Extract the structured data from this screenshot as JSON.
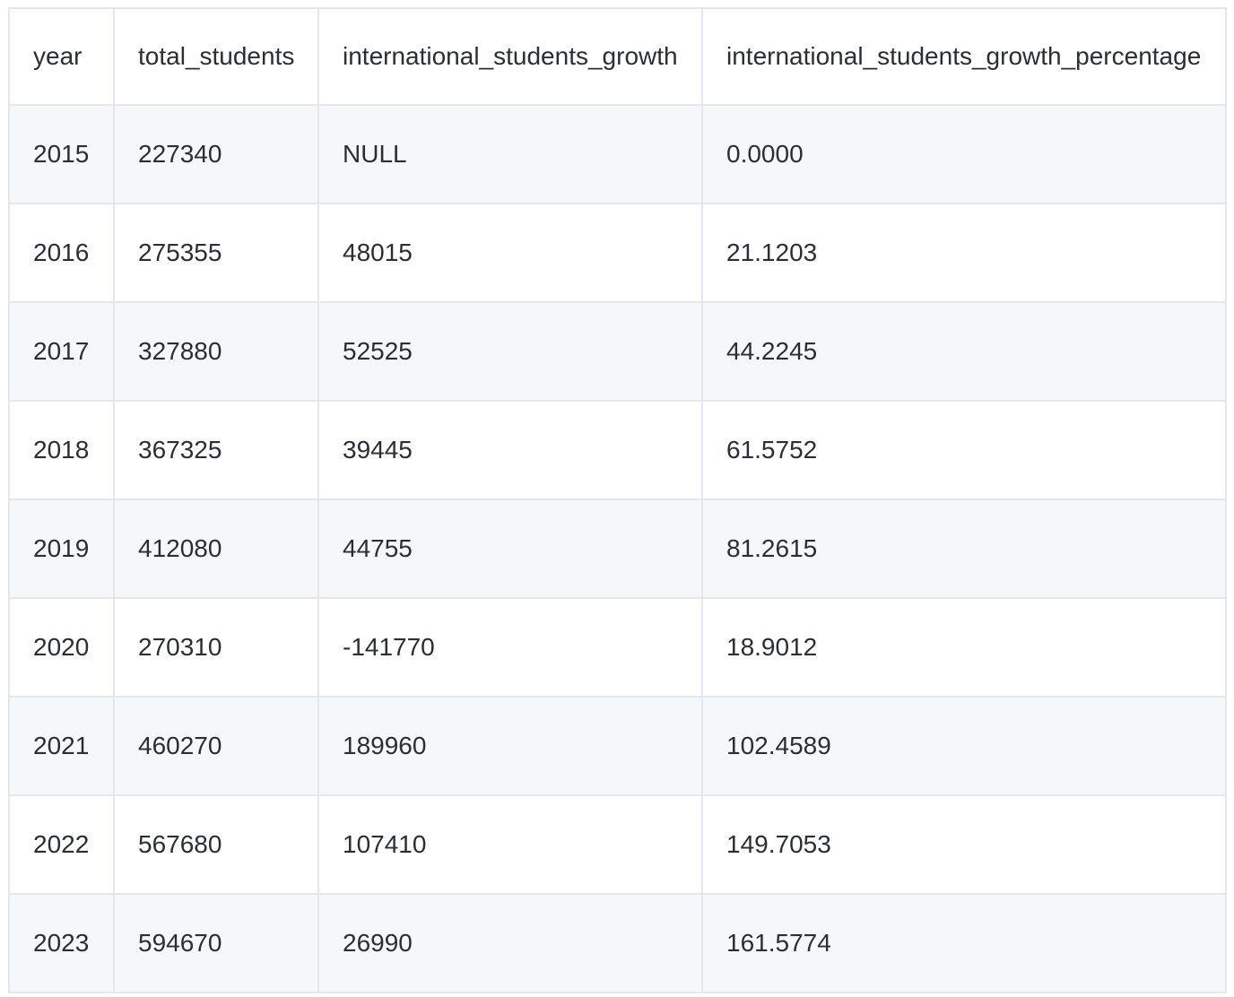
{
  "table": {
    "columns": [
      "year",
      "total_students",
      "international_students_growth",
      "international_students_growth_percentage"
    ],
    "rows": [
      [
        "2015",
        "227340",
        "NULL",
        "0.0000"
      ],
      [
        "2016",
        "275355",
        "48015",
        "21.1203"
      ],
      [
        "2017",
        "327880",
        "52525",
        "44.2245"
      ],
      [
        "2018",
        "367325",
        "39445",
        "61.5752"
      ],
      [
        "2019",
        "412080",
        "44755",
        "81.2615"
      ],
      [
        "2020",
        "270310",
        "-141770",
        "18.9012"
      ],
      [
        "2021",
        "460270",
        "189960",
        "102.4589"
      ],
      [
        "2022",
        "567680",
        "107410",
        "149.7053"
      ],
      [
        "2023",
        "594670",
        "26990",
        "161.5774"
      ]
    ]
  }
}
